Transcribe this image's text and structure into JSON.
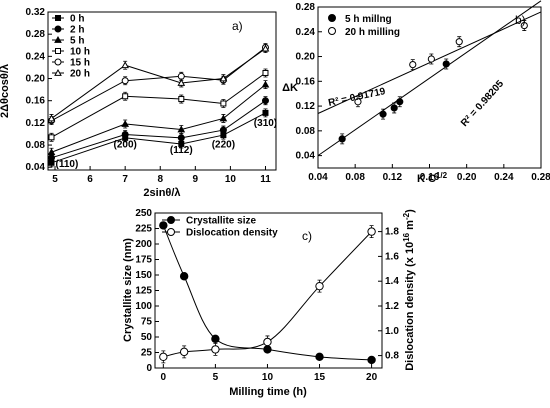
{
  "chart_data": [
    {
      "panel": "a)",
      "type": "line",
      "xlabel": "2sinθ/λ",
      "ylabel": "2Δθcosθ/λ",
      "xlim": [
        4.8,
        11.3
      ],
      "ylim": [
        0.035,
        0.32
      ],
      "xticks": [
        "5",
        "6",
        "7",
        "8",
        "9",
        "10",
        "11"
      ],
      "yticks": [
        "0.04",
        "0.08",
        "0.12",
        "0.16",
        "0.20",
        "0.24",
        "0.28",
        "0.32"
      ],
      "x": [
        4.9,
        7.0,
        8.6,
        9.8,
        11.0
      ],
      "annotations": [
        "(110)",
        "(200)",
        "(112)",
        "(220)",
        "(310)"
      ],
      "series": [
        {
          "name": "0 h",
          "marker": "filled-square",
          "values": [
            0.048,
            0.093,
            0.082,
            0.098,
            0.138
          ]
        },
        {
          "name": "2 h",
          "marker": "filled-circle",
          "values": [
            0.057,
            0.099,
            0.093,
            0.107,
            0.16
          ]
        },
        {
          "name": "5 h",
          "marker": "filled-triangle",
          "values": [
            0.067,
            0.118,
            0.108,
            0.128,
            0.189
          ]
        },
        {
          "name": "10 h",
          "marker": "open-square",
          "values": [
            0.094,
            0.168,
            0.163,
            0.155,
            0.21
          ]
        },
        {
          "name": "15 h",
          "marker": "open-circle",
          "values": [
            0.124,
            0.196,
            0.204,
            0.197,
            0.256
          ]
        },
        {
          "name": "20 h",
          "marker": "open-triangle",
          "values": [
            0.128,
            0.224,
            0.192,
            0.2,
            0.254
          ]
        }
      ]
    },
    {
      "panel": "b)",
      "type": "scatter",
      "xlabel": "K C^1/2",
      "ylabel": "ΔK",
      "xlim": [
        0.04,
        0.28
      ],
      "ylim": [
        0.02,
        0.28
      ],
      "xticks": [
        "0.04",
        "0.08",
        "0.12",
        "0.16",
        "0.20",
        "0.24",
        "0.28"
      ],
      "yticks": [
        "0.04",
        "0.08",
        "0.12",
        "0.16",
        "0.20",
        "0.24",
        "0.28"
      ],
      "series": [
        {
          "name": "5 h millng",
          "marker": "filled-circle",
          "points": [
            [
              0.066,
              0.067
            ],
            [
              0.11,
              0.107
            ],
            [
              0.122,
              0.117
            ],
            [
              0.128,
              0.127
            ],
            [
              0.178,
              0.188
            ]
          ],
          "fit_r2_label": "R² = 0.98205",
          "fit_line": [
            [
              0.04,
              0.04
            ],
            [
              0.28,
              0.29
            ]
          ]
        },
        {
          "name": "20 h milling",
          "marker": "open-circle",
          "points": [
            [
              0.083,
              0.127
            ],
            [
              0.142,
              0.187
            ],
            [
              0.162,
              0.196
            ],
            [
              0.192,
              0.224
            ],
            [
              0.262,
              0.25
            ]
          ],
          "fit_r2_label": "R² = 0.91719",
          "fit_line": [
            [
              0.04,
              0.108
            ],
            [
              0.28,
              0.272
            ]
          ]
        }
      ]
    },
    {
      "panel": "c)",
      "type": "line",
      "xlabel": "Milling time (h)",
      "ylabel_left": "Crystallite size (nm)",
      "ylabel_right": "Dislocation density (x 10¹⁶ m⁻²)",
      "xlim": [
        -0.8,
        21
      ],
      "ylim_left": [
        0,
        250
      ],
      "ylim_right": [
        0.7,
        1.95
      ],
      "xticks": [
        "0",
        "5",
        "10",
        "15",
        "20"
      ],
      "yticks_left": [
        "0",
        "25",
        "50",
        "75",
        "100",
        "125",
        "150",
        "175",
        "200",
        "225",
        "250"
      ],
      "yticks_right": [
        "0.8",
        "1.0",
        "1.2",
        "1.4",
        "1.6",
        "1.8"
      ],
      "series": [
        {
          "name": "Crystallite size",
          "axis": "left",
          "marker": "filled-circle",
          "x": [
            0,
            2,
            5,
            10,
            15,
            20
          ],
          "values": [
            230,
            148,
            47,
            30,
            18,
            13
          ]
        },
        {
          "name": "Dislocation density",
          "axis": "right",
          "marker": "open-circle",
          "x": [
            0,
            2,
            5,
            10,
            15,
            20
          ],
          "values": [
            0.79,
            0.83,
            0.85,
            0.91,
            1.36,
            1.8
          ]
        }
      ]
    }
  ]
}
